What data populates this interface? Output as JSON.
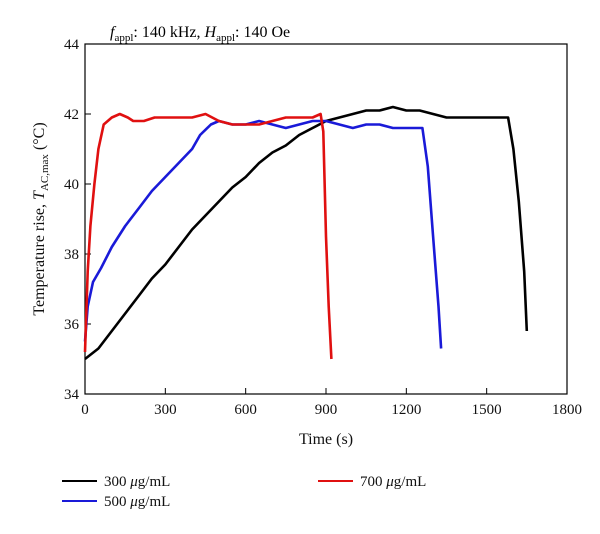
{
  "chart_data": {
    "type": "line",
    "annotation": {
      "f_symbol": "f",
      "f_sub": "appl",
      "f_value": ": 140 kHz, ",
      "h_symbol": "H",
      "h_sub": "appl",
      "h_value": ": 140 Oe"
    },
    "xlabel": "Time (s)",
    "ylabel": {
      "prefix": "Temperature rise, ",
      "symbol": "T",
      "sub": "AC,max",
      "suffix": " (°C)"
    },
    "xlim": [
      0,
      1800
    ],
    "ylim": [
      34,
      44
    ],
    "xticks": [
      "0",
      "300",
      "600",
      "900",
      "1200",
      "1500",
      "1800"
    ],
    "yticks": [
      "34",
      "36",
      "38",
      "40",
      "42",
      "44"
    ],
    "legend_placement": "bottom",
    "series": [
      {
        "name": "300 μg/mL",
        "label": {
          "num": "300 ",
          "mu": "μ",
          "unit": "g/mL"
        },
        "color": "#000000",
        "points": [
          [
            0,
            35.0
          ],
          [
            50,
            35.3
          ],
          [
            100,
            35.8
          ],
          [
            150,
            36.3
          ],
          [
            200,
            36.8
          ],
          [
            250,
            37.3
          ],
          [
            300,
            37.7
          ],
          [
            350,
            38.2
          ],
          [
            400,
            38.7
          ],
          [
            450,
            39.1
          ],
          [
            500,
            39.5
          ],
          [
            550,
            39.9
          ],
          [
            600,
            40.2
          ],
          [
            650,
            40.6
          ],
          [
            700,
            40.9
          ],
          [
            750,
            41.1
          ],
          [
            800,
            41.4
          ],
          [
            850,
            41.6
          ],
          [
            900,
            41.8
          ],
          [
            950,
            41.9
          ],
          [
            1000,
            42.0
          ],
          [
            1050,
            42.1
          ],
          [
            1100,
            42.1
          ],
          [
            1150,
            42.2
          ],
          [
            1200,
            42.1
          ],
          [
            1250,
            42.1
          ],
          [
            1300,
            42.0
          ],
          [
            1350,
            41.9
          ],
          [
            1400,
            41.9
          ],
          [
            1450,
            41.9
          ],
          [
            1500,
            41.9
          ],
          [
            1550,
            41.9
          ],
          [
            1580,
            41.9
          ],
          [
            1600,
            41.0
          ],
          [
            1620,
            39.5
          ],
          [
            1640,
            37.5
          ],
          [
            1650,
            35.8
          ]
        ]
      },
      {
        "name": "500 μg/mL",
        "label": {
          "num": "500 ",
          "mu": "μ",
          "unit": "g/mL"
        },
        "color": "#1a1ad8",
        "points": [
          [
            0,
            35.5
          ],
          [
            10,
            36.5
          ],
          [
            30,
            37.2
          ],
          [
            60,
            37.6
          ],
          [
            100,
            38.2
          ],
          [
            150,
            38.8
          ],
          [
            200,
            39.3
          ],
          [
            250,
            39.8
          ],
          [
            300,
            40.2
          ],
          [
            350,
            40.6
          ],
          [
            400,
            41.0
          ],
          [
            430,
            41.4
          ],
          [
            470,
            41.7
          ],
          [
            500,
            41.8
          ],
          [
            550,
            41.7
          ],
          [
            600,
            41.7
          ],
          [
            650,
            41.8
          ],
          [
            700,
            41.7
          ],
          [
            750,
            41.6
          ],
          [
            800,
            41.7
          ],
          [
            850,
            41.8
          ],
          [
            900,
            41.8
          ],
          [
            950,
            41.7
          ],
          [
            1000,
            41.6
          ],
          [
            1050,
            41.7
          ],
          [
            1100,
            41.7
          ],
          [
            1150,
            41.6
          ],
          [
            1200,
            41.6
          ],
          [
            1260,
            41.6
          ],
          [
            1280,
            40.5
          ],
          [
            1300,
            38.5
          ],
          [
            1320,
            36.5
          ],
          [
            1330,
            35.3
          ]
        ]
      },
      {
        "name": "700 μg/mL",
        "label": {
          "num": "700 ",
          "mu": "μ",
          "unit": "g/mL"
        },
        "color": "#e01010",
        "points": [
          [
            0,
            35.2
          ],
          [
            10,
            37.5
          ],
          [
            20,
            38.8
          ],
          [
            35,
            40.0
          ],
          [
            50,
            41.0
          ],
          [
            70,
            41.7
          ],
          [
            100,
            41.9
          ],
          [
            130,
            42.0
          ],
          [
            160,
            41.9
          ],
          [
            180,
            41.8
          ],
          [
            220,
            41.8
          ],
          [
            260,
            41.9
          ],
          [
            300,
            41.9
          ],
          [
            350,
            41.9
          ],
          [
            400,
            41.9
          ],
          [
            450,
            42.0
          ],
          [
            500,
            41.8
          ],
          [
            550,
            41.7
          ],
          [
            600,
            41.7
          ],
          [
            650,
            41.7
          ],
          [
            700,
            41.8
          ],
          [
            750,
            41.9
          ],
          [
            800,
            41.9
          ],
          [
            850,
            41.9
          ],
          [
            880,
            42.0
          ],
          [
            890,
            41.5
          ],
          [
            900,
            38.5
          ],
          [
            910,
            36.5
          ],
          [
            920,
            35.0
          ]
        ]
      }
    ]
  }
}
